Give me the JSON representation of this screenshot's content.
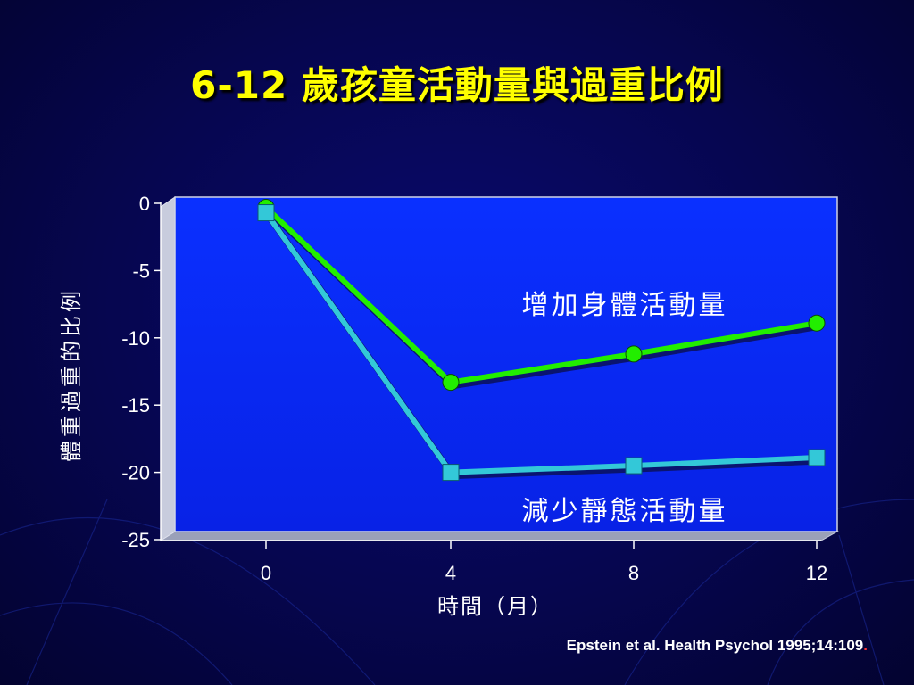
{
  "slide": {
    "title": "6-12 歲孩童活動量與過重比例",
    "citation": "Epstein et al. Health Psychol 1995;14:109",
    "citation_end": "."
  },
  "colors": {
    "background": "#06064f",
    "title": "#ffff00",
    "plot_area": "#0a28ff",
    "series_active": "#22ee00",
    "series_sedentary": "#33c8d8"
  },
  "chart_data": {
    "type": "line",
    "title": "",
    "xlabel": "時間（月）",
    "ylabel": "體重過重的比例",
    "x": [
      0,
      4,
      8,
      12
    ],
    "x_ticks": [
      "0",
      "4",
      "8",
      "12"
    ],
    "y_ticks": [
      "0",
      "-5",
      "-10",
      "-15",
      "-20",
      "-25"
    ],
    "ylim": [
      -25,
      0
    ],
    "grid": false,
    "series": [
      {
        "name": "增加身體活動量",
        "marker": "circle",
        "color": "#22ee00",
        "values": [
          -0.3,
          -13.3,
          -11.2,
          -8.9
        ]
      },
      {
        "name": "減少靜態活動量",
        "marker": "square",
        "color": "#33c8d8",
        "values": [
          -0.7,
          -20.0,
          -19.5,
          -18.9
        ]
      }
    ]
  }
}
